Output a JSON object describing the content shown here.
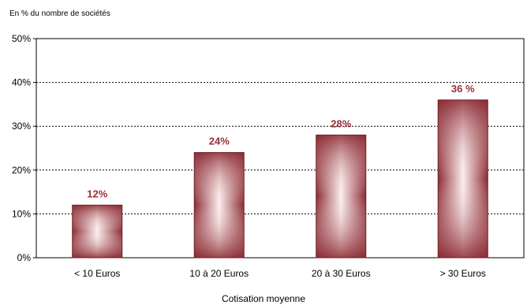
{
  "chart_data": {
    "type": "bar",
    "unit_note": "En % du nombre de sociétés",
    "xlabel": "Cotisation moyenne",
    "ylabel": "",
    "categories": [
      "< 10 Euros",
      "10 à 20 Euros",
      "20 à 30 Euros",
      "> 30 Euros"
    ],
    "values": [
      12,
      24,
      28,
      36
    ],
    "data_labels": [
      "12%",
      "24%",
      "28%",
      "36 %"
    ],
    "y_ticks": [
      "0%",
      "10%",
      "20%",
      "30%",
      "40%",
      "50%"
    ],
    "ylim": [
      0,
      50
    ],
    "grid": true,
    "colors": {
      "bar_edge": "#8b2a32",
      "bar_mid": "#c46a70",
      "bar_center": "#fbeeee",
      "label": "#9b2d36",
      "grid": "#000000"
    }
  }
}
